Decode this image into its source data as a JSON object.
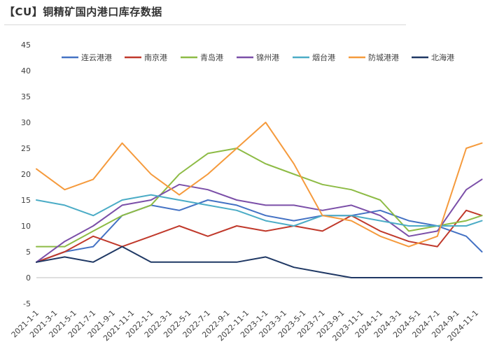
{
  "page": {
    "title": "【CU】铜精矿国内港口库存数据"
  },
  "chart_data": {
    "type": "line",
    "title": "",
    "xlabel": "",
    "ylabel": "",
    "ylim": [
      -5,
      45
    ],
    "yticks": [
      -5,
      0,
      5,
      10,
      15,
      20,
      25,
      30,
      35,
      40,
      45
    ],
    "x_range": [
      "2021-01-01",
      "2024-11-01"
    ],
    "x_ticks": [
      "2021-1-1",
      "2021-3-1",
      "2021-5-1",
      "2021-7-1",
      "2021-9-1",
      "2021-11-1",
      "2022-1-1",
      "2022-3-1",
      "2022-5-1",
      "2022-7-1",
      "2022-9-1",
      "2022-11-1",
      "2023-1-1",
      "2023-3-1",
      "2023-5-1",
      "2023-7-1",
      "2023-9-1",
      "2023-11-1",
      "2024-1-1",
      "2024-3-1",
      "2024-5-1",
      "2024-7-1",
      "2024-9-1",
      "2024-11-1"
    ],
    "legend_position": "top",
    "grid": false,
    "series": [
      {
        "name": "连云港港",
        "color": "#4472c4",
        "points": [
          [
            "2021-01-01",
            3
          ],
          [
            "2021-04-01",
            5
          ],
          [
            "2021-07-01",
            6
          ],
          [
            "2021-10-01",
            12
          ],
          [
            "2022-01-01",
            14
          ],
          [
            "2022-04-01",
            13
          ],
          [
            "2022-07-01",
            15
          ],
          [
            "2022-10-01",
            14
          ],
          [
            "2023-01-01",
            12
          ],
          [
            "2023-04-01",
            11
          ],
          [
            "2023-07-01",
            12
          ],
          [
            "2023-10-01",
            12
          ],
          [
            "2024-01-01",
            13
          ],
          [
            "2024-04-01",
            11
          ],
          [
            "2024-07-01",
            10
          ],
          [
            "2024-10-01",
            8
          ],
          [
            "2024-11-20",
            5
          ]
        ]
      },
      {
        "name": "南京港",
        "color": "#c0392b",
        "points": [
          [
            "2021-01-01",
            3
          ],
          [
            "2021-04-01",
            5
          ],
          [
            "2021-07-01",
            8
          ],
          [
            "2021-10-01",
            6
          ],
          [
            "2022-01-01",
            8
          ],
          [
            "2022-04-01",
            10
          ],
          [
            "2022-07-01",
            8
          ],
          [
            "2022-10-01",
            10
          ],
          [
            "2023-01-01",
            9
          ],
          [
            "2023-04-01",
            10
          ],
          [
            "2023-07-01",
            9
          ],
          [
            "2023-10-01",
            12
          ],
          [
            "2024-01-01",
            9
          ],
          [
            "2024-04-01",
            7
          ],
          [
            "2024-07-01",
            6
          ],
          [
            "2024-10-01",
            13
          ],
          [
            "2024-11-20",
            12
          ]
        ]
      },
      {
        "name": "青岛港",
        "color": "#8dbb45",
        "points": [
          [
            "2021-01-01",
            6
          ],
          [
            "2021-04-01",
            6
          ],
          [
            "2021-07-01",
            9
          ],
          [
            "2021-10-01",
            12
          ],
          [
            "2022-01-01",
            14
          ],
          [
            "2022-04-01",
            20
          ],
          [
            "2022-07-01",
            24
          ],
          [
            "2022-10-01",
            25
          ],
          [
            "2023-01-01",
            22
          ],
          [
            "2023-04-01",
            20
          ],
          [
            "2023-07-01",
            18
          ],
          [
            "2023-10-01",
            17
          ],
          [
            "2024-01-01",
            15
          ],
          [
            "2024-04-01",
            9
          ],
          [
            "2024-07-01",
            10
          ],
          [
            "2024-10-01",
            11
          ],
          [
            "2024-11-20",
            12
          ]
        ]
      },
      {
        "name": "锦州港",
        "color": "#7b4fa8",
        "points": [
          [
            "2021-01-01",
            3
          ],
          [
            "2021-04-01",
            7
          ],
          [
            "2021-07-01",
            10
          ],
          [
            "2021-10-01",
            14
          ],
          [
            "2022-01-01",
            15
          ],
          [
            "2022-04-01",
            18
          ],
          [
            "2022-07-01",
            17
          ],
          [
            "2022-10-01",
            15
          ],
          [
            "2023-01-01",
            14
          ],
          [
            "2023-04-01",
            14
          ],
          [
            "2023-07-01",
            13
          ],
          [
            "2023-10-01",
            14
          ],
          [
            "2024-01-01",
            12
          ],
          [
            "2024-04-01",
            8
          ],
          [
            "2024-07-01",
            9
          ],
          [
            "2024-10-01",
            17
          ],
          [
            "2024-11-20",
            19
          ]
        ]
      },
      {
        "name": "烟台港",
        "color": "#4bacc6",
        "points": [
          [
            "2021-01-01",
            15
          ],
          [
            "2021-04-01",
            14
          ],
          [
            "2021-07-01",
            12
          ],
          [
            "2021-10-01",
            15
          ],
          [
            "2022-01-01",
            16
          ],
          [
            "2022-04-01",
            15
          ],
          [
            "2022-07-01",
            14
          ],
          [
            "2022-10-01",
            13
          ],
          [
            "2023-01-01",
            11
          ],
          [
            "2023-04-01",
            10
          ],
          [
            "2023-07-01",
            12
          ],
          [
            "2023-10-01",
            12
          ],
          [
            "2024-01-01",
            11
          ],
          [
            "2024-04-01",
            10
          ],
          [
            "2024-07-01",
            10
          ],
          [
            "2024-10-01",
            10
          ],
          [
            "2024-11-20",
            11
          ]
        ]
      },
      {
        "name": "防城港港",
        "color": "#f59a3c",
        "points": [
          [
            "2021-01-01",
            21
          ],
          [
            "2021-04-01",
            17
          ],
          [
            "2021-07-01",
            19
          ],
          [
            "2021-10-01",
            26
          ],
          [
            "2022-01-01",
            20
          ],
          [
            "2022-04-01",
            16
          ],
          [
            "2022-07-01",
            20
          ],
          [
            "2022-10-01",
            25
          ],
          [
            "2023-01-01",
            30
          ],
          [
            "2023-04-01",
            22
          ],
          [
            "2023-07-01",
            12
          ],
          [
            "2023-10-01",
            11
          ],
          [
            "2024-01-01",
            8
          ],
          [
            "2024-04-01",
            6
          ],
          [
            "2024-07-01",
            8
          ],
          [
            "2024-10-01",
            25
          ],
          [
            "2024-11-20",
            26
          ]
        ]
      },
      {
        "name": "北海港",
        "color": "#1f3864",
        "points": [
          [
            "2021-01-01",
            3
          ],
          [
            "2021-04-01",
            4
          ],
          [
            "2021-07-01",
            3
          ],
          [
            "2021-10-01",
            6
          ],
          [
            "2022-01-01",
            3
          ],
          [
            "2022-04-01",
            3
          ],
          [
            "2022-07-01",
            3
          ],
          [
            "2022-10-01",
            3
          ],
          [
            "2023-01-01",
            4
          ],
          [
            "2023-04-01",
            2
          ],
          [
            "2023-07-01",
            1
          ],
          [
            "2023-10-01",
            0
          ],
          [
            "2024-01-01",
            0
          ],
          [
            "2024-04-01",
            0
          ],
          [
            "2024-07-01",
            0
          ],
          [
            "2024-10-01",
            0
          ],
          [
            "2024-11-20",
            0
          ]
        ]
      }
    ]
  }
}
